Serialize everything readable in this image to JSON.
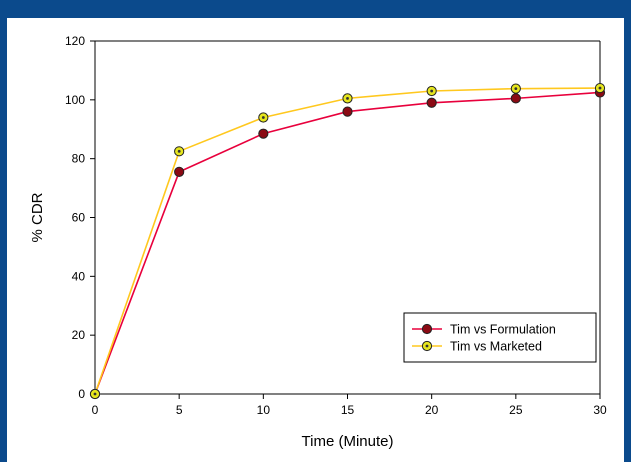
{
  "chart_data": {
    "type": "line",
    "title": "",
    "xlabel": "Time (Minute)",
    "ylabel": "% CDR",
    "xlim": [
      0,
      30
    ],
    "ylim": [
      0,
      120
    ],
    "x_ticks": [
      0,
      5,
      10,
      15,
      20,
      25,
      30
    ],
    "y_ticks": [
      0,
      20,
      40,
      60,
      80,
      100,
      120
    ],
    "grid": false,
    "legend_position": "bottom-right",
    "x": [
      0,
      5,
      10,
      15,
      20,
      25,
      30
    ],
    "series": [
      {
        "name": "Tim vs Formulation",
        "values": [
          0,
          75.5,
          88.5,
          96,
          99,
          100.5,
          102.5
        ],
        "line_color": "#e8003c",
        "marker_color": "#8b0a14"
      },
      {
        "name": "Tim vs Marketed",
        "values": [
          0,
          82.5,
          94,
          100.5,
          103,
          103.8,
          104
        ],
        "line_color": "#ffc81e",
        "marker_color": "#e6e61e"
      }
    ]
  },
  "colors": {
    "frame": "#0b4a8c"
  }
}
